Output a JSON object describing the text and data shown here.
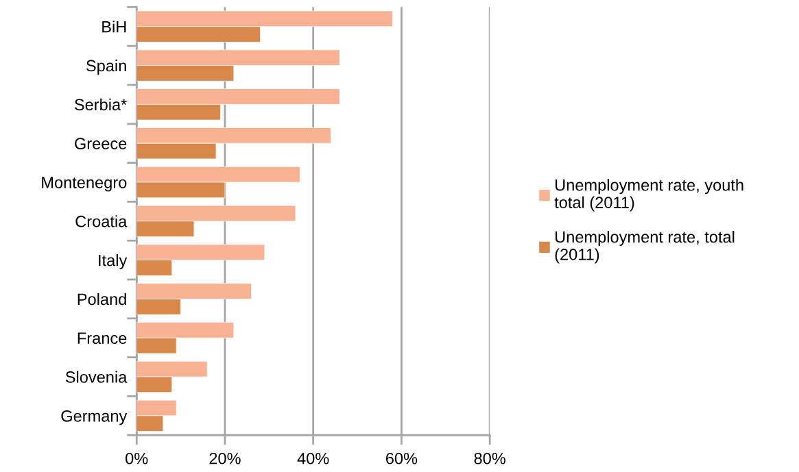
{
  "chart_data": {
    "type": "bar",
    "orientation": "horizontal",
    "categories": [
      "BiH",
      "Spain",
      "Serbia*",
      "Greece",
      "Montenegro",
      "Croatia",
      "Italy",
      "Poland",
      "France",
      "Slovenia",
      "Germany"
    ],
    "series": [
      {
        "name": "Unemployment rate, youth total (2011)",
        "color": "#f8b293",
        "values": [
          58,
          46,
          46,
          44,
          37,
          36,
          29,
          26,
          22,
          16,
          9
        ]
      },
      {
        "name": "Unemployment rate, total (2011)",
        "color": "#d8884b",
        "values": [
          28,
          22,
          19,
          18,
          20,
          13,
          8,
          10,
          9,
          8,
          6
        ]
      }
    ],
    "xlim": [
      0,
      80
    ],
    "xticks": [
      {
        "value": 0,
        "label": "0%"
      },
      {
        "value": 20,
        "label": "20%"
      },
      {
        "value": 40,
        "label": "40%"
      },
      {
        "value": 60,
        "label": "60%"
      },
      {
        "value": 80,
        "label": "80%"
      }
    ],
    "grid": "x",
    "legend": "right"
  }
}
